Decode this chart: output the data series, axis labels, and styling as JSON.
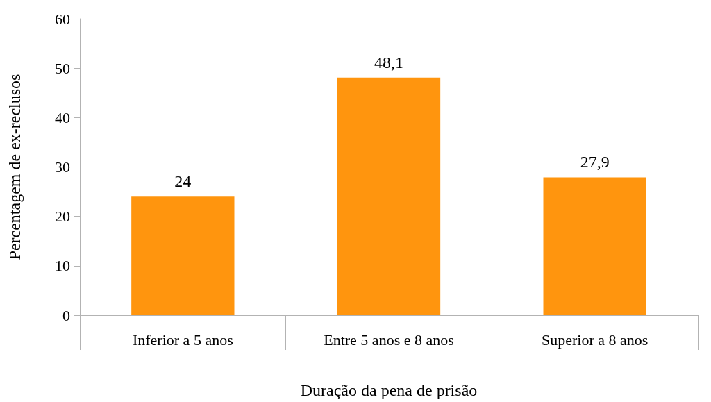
{
  "chart_data": {
    "type": "bar",
    "xlabel": "Duração da pena de prisão",
    "ylabel": "Percentagem de ex-reclusos",
    "categories": [
      "Inferior a 5 anos",
      "Entre 5 anos e 8 anos",
      "Superior a 8 anos"
    ],
    "values": [
      24,
      48.1,
      27.9
    ],
    "value_labels": [
      "24",
      "48,1",
      "27,9"
    ],
    "color": "#ff950e",
    "ylim": [
      0,
      60
    ],
    "yticks": [
      0,
      10,
      20,
      30,
      40,
      50,
      60
    ],
    "grid": false
  }
}
